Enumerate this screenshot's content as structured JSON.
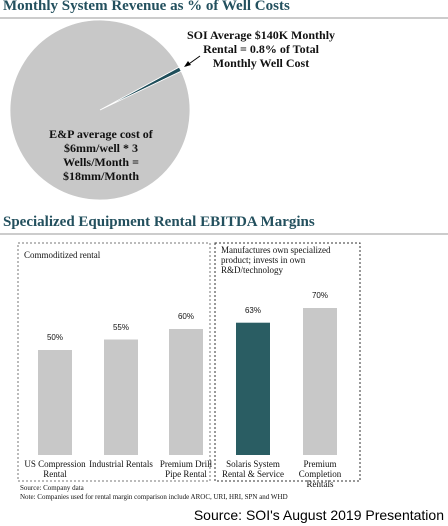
{
  "chart_data": [
    {
      "type": "pie",
      "title": "Monthly System Revenue as % of Well Costs",
      "labels": [
        "SOI Average $140K Monthly Rental = 0.8% of Total Monthly Well Cost",
        "E&P average cost of $6mm/well * 3 Wells/Month = $18mm/Month"
      ],
      "values": [
        0.8,
        99.2
      ],
      "colors": [
        "#1f4e5a",
        "#c8c8c8"
      ]
    },
    {
      "type": "bar",
      "title": "Specialized Equipment Rental EBITDA Margins",
      "group_labels": [
        "Commoditized rental",
        "Manufactures own specialized product; invests in own R&D/technology"
      ],
      "categories": [
        "US Compression Rental",
        "Industrial Rentals",
        "Premium Drill Pipe Rental",
        "Solaris System Rental & Service",
        "Premium Completion Rentals"
      ],
      "values": [
        50,
        55,
        60,
        63,
        70
      ],
      "value_labels": [
        "50%",
        "55%",
        "60%",
        "63%",
        "70%"
      ],
      "colors": [
        "#c8c8c8",
        "#c8c8c8",
        "#c8c8c8",
        "#2a5d63",
        "#c8c8c8"
      ]
    }
  ],
  "notes": [
    "Source: Company data",
    "Note: Companies used for rental margin comparison include AROC, URI, HRI, SPN and WHD"
  ],
  "source": "Source: SOI's August 2019 Presentation"
}
